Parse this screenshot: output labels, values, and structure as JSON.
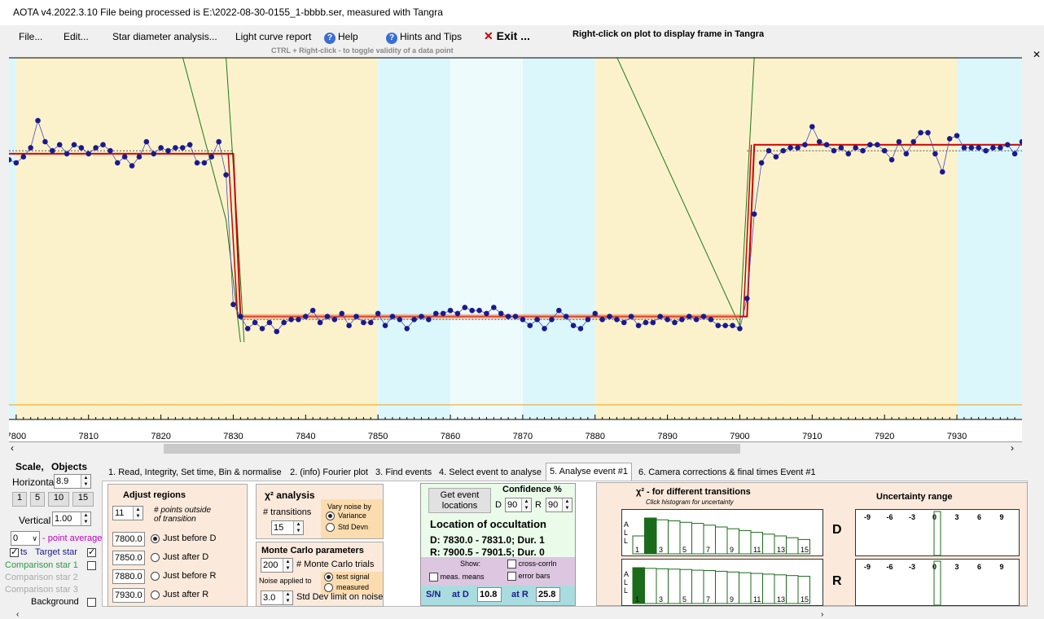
{
  "window": {
    "title": "AOTA v4.2022.3.10   File being processed is E:\\2022-08-30-0155_1-bbbb.ser, measured with Tangra"
  },
  "menu": {
    "file": "File...",
    "edit": "Edit...",
    "star_diameter": "Star diameter analysis...",
    "light_curve": "Light curve report",
    "help": "Help",
    "hints": "Hints and Tips",
    "exit": "Exit ...",
    "right_click_hint": "Right-click on plot to display frame in Tangra",
    "ctrl_hint": "CTRL + Right-click  -  to toggle validity of a data point"
  },
  "colors": {
    "accent": "#cc0000",
    "data_point": "#1a1a8c",
    "band_yellow": "#fbf2cc",
    "band_cyan": "#dcf7fb"
  },
  "chart_data": {
    "type": "line",
    "x_ticks": [
      "7800",
      "7810",
      "7820",
      "7830",
      "7840",
      "7850",
      "7860",
      "7870",
      "7880",
      "7890",
      "7900",
      "7910",
      "7920",
      "7930"
    ],
    "xlim": [
      7799,
      7939
    ],
    "ylim": [
      0,
      100
    ],
    "series": [
      {
        "x": [
          7799,
          7800,
          7801,
          7802,
          7803,
          7804,
          7805,
          7806,
          7807,
          7808,
          7809,
          7810,
          7811,
          7812,
          7813,
          7814,
          7815,
          7816,
          7817,
          7818,
          7819,
          7820,
          7821,
          7822,
          7823,
          7824,
          7825,
          7826,
          7827,
          7828,
          7829,
          7830,
          7831,
          7832,
          7833,
          7834,
          7835,
          7836,
          7837,
          7838,
          7839,
          7840,
          7841,
          7842,
          7843,
          7844,
          7845,
          7846,
          7847,
          7848,
          7849,
          7850,
          7851,
          7852,
          7853,
          7854,
          7855,
          7856,
          7857,
          7858,
          7859,
          7860,
          7861,
          7862,
          7863,
          7864,
          7865,
          7866,
          7867,
          7868,
          7869,
          7870,
          7871,
          7872,
          7873,
          7874,
          7875,
          7876,
          7877,
          7878,
          7879,
          7880,
          7881,
          7882,
          7883,
          7884,
          7885,
          7886,
          7887,
          7888,
          7889,
          7890,
          7891,
          7892,
          7893,
          7894,
          7895,
          7896,
          7897,
          7898,
          7899,
          7900,
          7901,
          7902,
          7903,
          7904,
          7905,
          7906,
          7907,
          7908,
          7909,
          7910,
          7911,
          7912,
          7913,
          7914,
          7915,
          7916,
          7917,
          7918,
          7919,
          7920,
          7921,
          7922,
          7923,
          7924,
          7925,
          7926,
          7927,
          7928,
          7929,
          7930,
          7931,
          7932,
          7933,
          7934,
          7935,
          7936,
          7937,
          7938,
          7939
        ],
        "y": [
          74,
          73,
          75,
          78,
          87,
          80,
          77,
          79,
          76,
          79,
          78,
          76,
          78,
          79,
          77,
          73,
          75,
          72,
          75,
          80,
          76,
          78,
          77,
          78,
          78,
          79,
          73,
          73,
          75,
          80,
          69,
          26,
          22,
          18,
          20,
          18,
          20,
          17,
          20,
          21,
          21,
          22,
          24,
          20,
          22,
          21,
          23,
          19,
          22,
          20,
          20,
          23,
          19,
          22,
          21,
          18,
          21,
          22,
          21,
          23,
          23,
          24,
          23,
          25,
          24,
          24,
          23,
          25,
          23,
          22,
          22,
          21,
          19,
          21,
          18,
          21,
          24,
          22,
          19,
          18,
          21,
          23,
          21,
          22,
          21,
          20,
          22,
          19,
          20,
          20,
          22,
          21,
          20,
          21,
          22,
          21,
          22,
          21,
          19,
          19,
          19,
          18,
          28,
          56,
          73,
          77,
          75,
          77,
          78,
          78,
          79,
          85,
          80,
          79,
          77,
          78,
          76,
          78,
          77,
          79,
          79,
          77,
          74,
          80,
          76,
          80,
          83,
          83,
          76,
          70,
          81,
          82,
          78,
          78,
          78,
          77,
          78,
          78,
          79,
          76,
          80
        ],
        "name": ""
      }
    ]
  },
  "scale": {
    "title": "Scale,",
    "objects": "Objects",
    "horizontal_label": "Horizontal",
    "horizontal_value": "8.9",
    "btn1": "1",
    "btn5": "5",
    "btn10": "10",
    "btn15": "15",
    "vertical_label": "Vertical",
    "vertical_value": "1.00",
    "avg_value": "0",
    "avg_label": "- point average",
    "target": "Target star",
    "target_prefix": "ts",
    "comp1": "Comparison star 1",
    "comp2": "Comparison star 2",
    "comp3": "Comparison star 3",
    "background": "Background"
  },
  "tabs": [
    "1.  Read, Integrity, Set time, Bin & normalise",
    "2. (info)  Fourier plot",
    "3. Find events",
    "4. Select event to analyse",
    "5. Analyse event #1",
    "6. Camera corrections & final times Event #1"
  ],
  "adjust": {
    "title": "Adjust regions",
    "points_value": "11",
    "points_label1": "# points outside",
    "points_label2": "of transition",
    "r1_value": "7800.0",
    "r1_label": "Just before D",
    "r2_value": "7850.0",
    "r2_label": "Just after D",
    "r3_value": "7880.0",
    "r3_label": "Just before R",
    "r4_value": "7930.0",
    "r4_label": "Just after R"
  },
  "chi": {
    "title": "χ² analysis",
    "vary1": "Vary noise by",
    "variance": "Variance",
    "stddevn": "Std Devn",
    "transitions_label": "# transitions",
    "transitions_value": "15"
  },
  "mc": {
    "title": "Monte Carlo parameters",
    "trials_value": "200",
    "trials_label": "# Monte Carlo trials",
    "noise_applied": "Noise applied to",
    "test_signal": "test signal",
    "measured": "measured",
    "sd_value": "3.0",
    "sd_label": "Std Dev limit on noise"
  },
  "events": {
    "get_btn1": "Get event",
    "get_btn2": "locations",
    "conf_title": "Confidence %",
    "D": "D",
    "D_value": "90",
    "R": "R",
    "R_value": "90",
    "loc_title": "Location of occultation",
    "D_line": "D: 7830.0 - 7831.0; Dur. 1",
    "R_line": "R: 7900.5 - 7901.5; Dur. 0",
    "show": "Show:",
    "cross": "cross-corrln",
    "means": "meas. means",
    "errbars": "error bars",
    "sn": "S/N",
    "atD": "at D",
    "atD_value": "10.8",
    "atR": "at R",
    "atR_value": "25.8"
  },
  "chi2": {
    "title": "χ² - for different transitions",
    "subtitle": "Click histogram for uncertainty",
    "all": "A L L",
    "D": "D",
    "R": "R",
    "hist_labels": [
      "1",
      "3",
      "5",
      "7",
      "9",
      "11",
      "13",
      "15"
    ],
    "d_heights": [
      0.5,
      1,
      0.95,
      0.92,
      0.88,
      0.85,
      0.8,
      0.75,
      0.7,
      0.65,
      0.6,
      0.55,
      0.5,
      0.45,
      0.4
    ],
    "r_heights": [
      1,
      0.98,
      0.97,
      0.96,
      0.95,
      0.93,
      0.92,
      0.9,
      0.88,
      0.86,
      0.84,
      0.82,
      0.8,
      0.78,
      0.76
    ]
  },
  "uncert": {
    "title": "Uncertainty range",
    "ticks": [
      "-9",
      "-6",
      "-3",
      "0",
      "3",
      "6",
      "9"
    ]
  }
}
